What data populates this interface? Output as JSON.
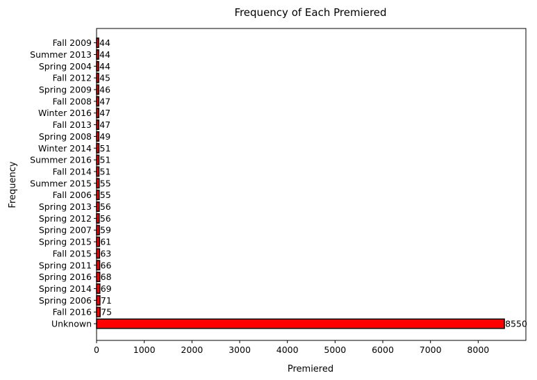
{
  "chart_data": {
    "type": "bar",
    "orientation": "horizontal",
    "title": "Frequency of Each Premiered",
    "xlabel": "Premiered",
    "ylabel": "Frequency",
    "xlim": [
      0,
      9000
    ],
    "xticks": [
      0,
      1000,
      2000,
      3000,
      4000,
      5000,
      6000,
      7000,
      8000
    ],
    "grid": false,
    "legend": "none",
    "bar_color": "#ff0000",
    "edge_color": "#000000",
    "categories": [
      "Unknown",
      "Fall 2016",
      "Spring 2006",
      "Spring 2014",
      "Spring 2016",
      "Spring 2011",
      "Fall 2015",
      "Spring 2015",
      "Spring 2007",
      "Spring 2012",
      "Spring 2013",
      "Fall 2006",
      "Summer 2015",
      "Fall 2014",
      "Summer 2016",
      "Winter 2014",
      "Spring 2008",
      "Fall 2013",
      "Winter 2016",
      "Fall 2008",
      "Spring 2009",
      "Fall 2012",
      "Spring 2004",
      "Summer 2013",
      "Fall 2009"
    ],
    "values": [
      8550,
      75,
      71,
      69,
      68,
      66,
      63,
      61,
      59,
      56,
      56,
      55,
      55,
      51,
      51,
      51,
      49,
      47,
      47,
      47,
      46,
      45,
      44,
      44,
      44
    ]
  }
}
